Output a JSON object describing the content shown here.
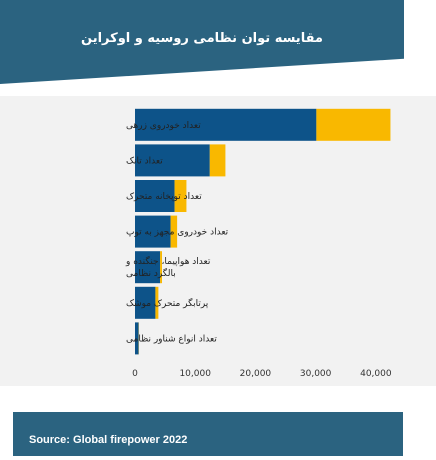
{
  "header": {
    "title": "مقایسه توان نظامی روسیه و اوکراین"
  },
  "footer": {
    "source": "Source: Global firepower 2022"
  },
  "colors": {
    "russia": "#0d5389",
    "ukraine": "#f9b800",
    "header_bg": "#2b6380",
    "plot_bg": "#f2f2f2"
  },
  "chart_data": {
    "type": "bar",
    "orientation": "horizontal",
    "stacked": true,
    "categories": [
      [
        "تعداد خودروی زرهی"
      ],
      [
        "تعداد تانک"
      ],
      [
        "تعداد توپخانه متحرک"
      ],
      [
        "تعداد خودروی مجهز به توپ"
      ],
      [
        "تعداد هواپیما، جنگنده و",
        "بالگرد نظامی"
      ],
      [
        "پرتابگر متحرک موشک"
      ],
      [
        "تعداد انواع شناور نظامی"
      ]
    ],
    "series": [
      {
        "values": [
          30122,
          12420,
          6574,
          5915,
          4173,
          3391,
          605
        ]
      },
      {
        "values": [
          12303,
          2596,
          1967,
          1080,
          312,
          490,
          38
        ]
      }
    ],
    "xlim": [
      0,
      47000
    ],
    "xticks": [
      0,
      10000,
      20000,
      30000,
      40000
    ],
    "xtick_labels": [
      "0",
      "10,000",
      "20,000",
      "30,000",
      "40,000"
    ],
    "grid": false
  }
}
